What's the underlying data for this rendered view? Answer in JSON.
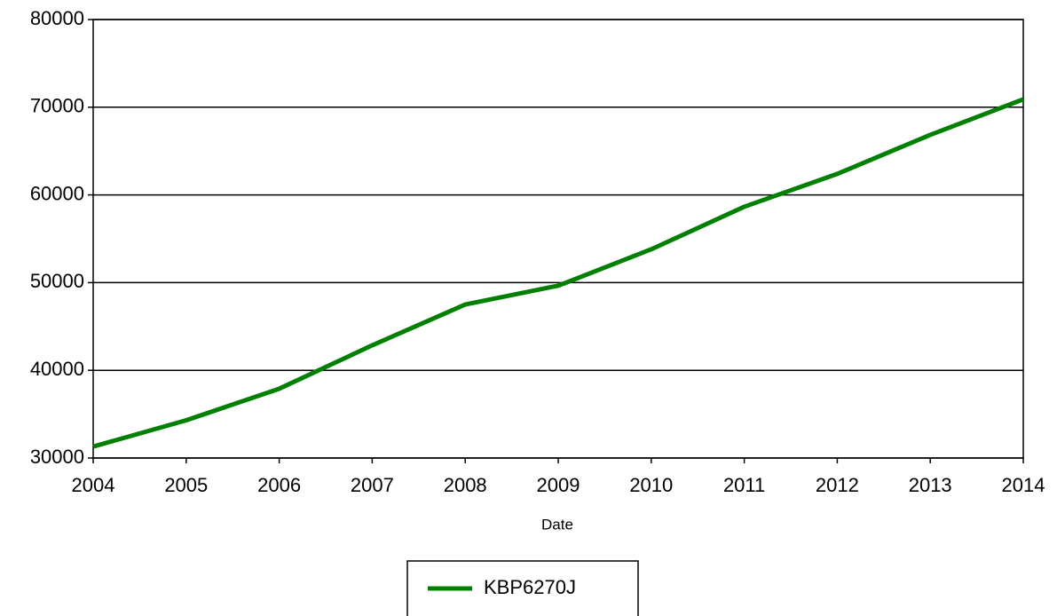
{
  "chart_data": {
    "type": "line",
    "x_label": "Date",
    "x": [
      2004,
      2005,
      2006,
      2007,
      2008,
      2009,
      2010,
      2011,
      2012,
      2013,
      2014
    ],
    "series": [
      {
        "name": "KBP6270J",
        "color": "#008000",
        "values": [
          31300,
          34300,
          37900,
          42850,
          47500,
          49650,
          53800,
          58650,
          62400,
          66850,
          70900
        ]
      }
    ],
    "xlim": [
      2004,
      2014
    ],
    "xticks": [
      2004,
      2005,
      2006,
      2007,
      2008,
      2009,
      2010,
      2011,
      2012,
      2013,
      2014
    ],
    "ylim": [
      30000,
      80000
    ],
    "yticks": [
      30000,
      40000,
      50000,
      60000,
      70000,
      80000
    ],
    "grid": true,
    "legend": "bottom"
  }
}
